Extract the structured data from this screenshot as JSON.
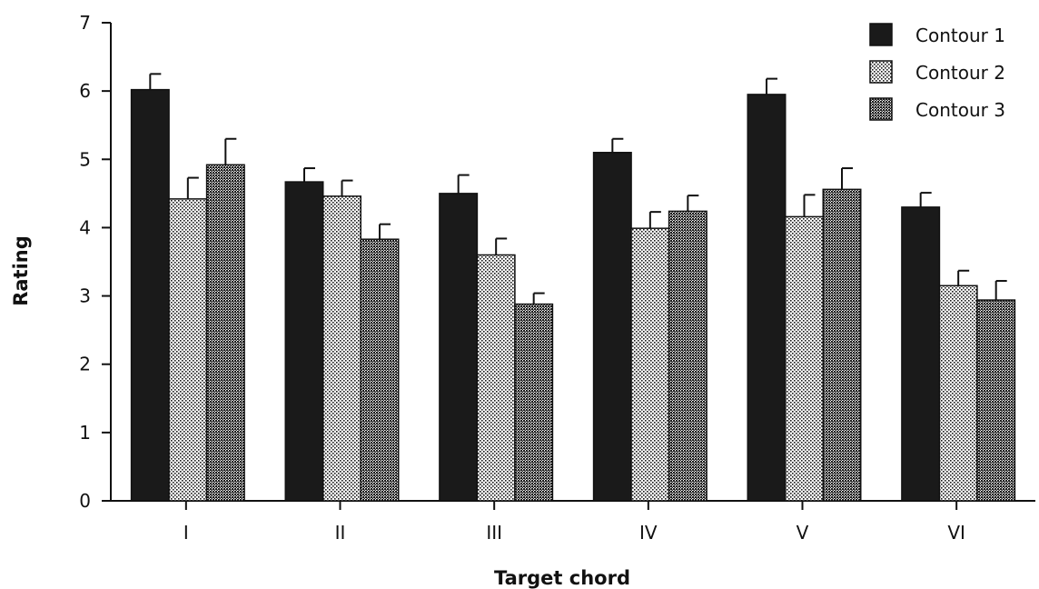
{
  "chart_data": {
    "type": "bar",
    "title": "",
    "xlabel": "Target chord",
    "ylabel": "Rating",
    "categories": [
      "I",
      "II",
      "III",
      "IV",
      "V",
      "VI"
    ],
    "ylim": [
      0,
      7
    ],
    "yticks": [
      0,
      1,
      2,
      3,
      4,
      5,
      6,
      7
    ],
    "grid": false,
    "legend_position": "top-right",
    "error_bars": true,
    "series": [
      {
        "name": "Contour 1",
        "pattern": "solid",
        "color": "#1a1a1a",
        "values": [
          6.02,
          4.67,
          4.5,
          5.1,
          5.95,
          4.3
        ],
        "errors": [
          0.23,
          0.2,
          0.27,
          0.2,
          0.23,
          0.21
        ]
      },
      {
        "name": "Contour 2",
        "pattern": "light-dots",
        "color": "#bdbdbd",
        "values": [
          4.42,
          4.46,
          3.6,
          3.99,
          4.16,
          3.15
        ],
        "errors": [
          0.31,
          0.23,
          0.24,
          0.24,
          0.32,
          0.22
        ]
      },
      {
        "name": "Contour 3",
        "pattern": "dense-dots",
        "color": "#6e6e6e",
        "values": [
          4.92,
          3.83,
          2.88,
          4.24,
          4.56,
          2.94
        ],
        "errors": [
          0.38,
          0.22,
          0.16,
          0.23,
          0.31,
          0.28
        ]
      }
    ]
  }
}
